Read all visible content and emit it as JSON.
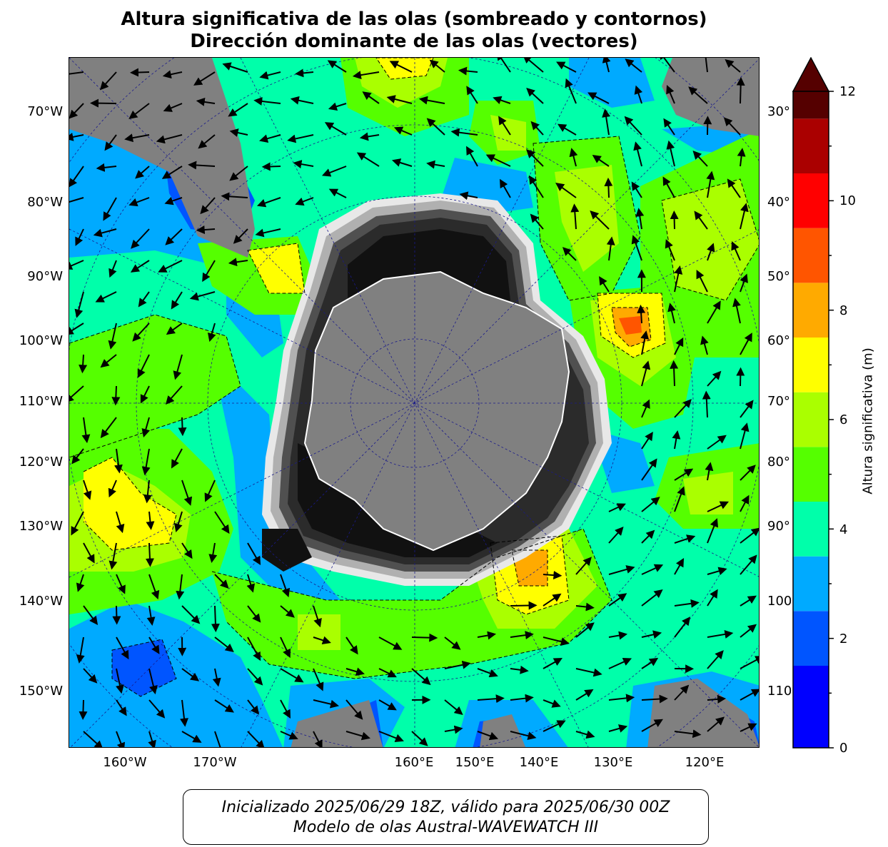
{
  "title": {
    "line1": "Altura significativa de las olas (sombreado y contornos)",
    "line2": "Dirección dominante de las olas (vectores)"
  },
  "map": {
    "projection": "south-polar-stereographic",
    "left_labels": [
      "70°W",
      "80°W",
      "90°W",
      "100°W",
      "110°W",
      "120°W",
      "130°W",
      "140°W",
      "150°W"
    ],
    "right_labels": [
      "30°",
      "40°",
      "50°",
      "60°",
      "70°",
      "80°",
      "90°",
      "100",
      "110"
    ],
    "bottom_labels": [
      "160°W",
      "170°W",
      "160°E",
      "150°E",
      "140°E",
      "130°E",
      "120°E"
    ],
    "colors": {
      "land": "#808080",
      "sea_ice": [
        "#111111",
        "#2b2b2b",
        "#505050",
        "#7a7a7a",
        "#b0b0b0",
        "#e8e8e8"
      ],
      "contour_line": "#000000",
      "graticule": "#1a1a8a",
      "vector": "#000000"
    }
  },
  "colorbar": {
    "label": "Altura significativa (m)",
    "ticks": [
      "0",
      "2",
      "4",
      "6",
      "8",
      "10",
      "12"
    ],
    "vmin": 0,
    "vmax": 12,
    "extend": "max",
    "levels": [
      {
        "from": 0,
        "to": 1.5,
        "color": "#0000ff"
      },
      {
        "from": 1.5,
        "to": 2.5,
        "color": "#0055ff"
      },
      {
        "from": 2.5,
        "to": 3.5,
        "color": "#00aaff"
      },
      {
        "from": 3.5,
        "to": 4.5,
        "color": "#00ffaa"
      },
      {
        "from": 4.5,
        "to": 5.5,
        "color": "#55ff00"
      },
      {
        "from": 5.5,
        "to": 6.5,
        "color": "#aaff00"
      },
      {
        "from": 6.5,
        "to": 7.5,
        "color": "#ffff00"
      },
      {
        "from": 7.5,
        "to": 8.5,
        "color": "#ffaa00"
      },
      {
        "from": 8.5,
        "to": 9.5,
        "color": "#ff5500"
      },
      {
        "from": 9.5,
        "to": 10.5,
        "color": "#ff0000"
      },
      {
        "from": 10.5,
        "to": 11.5,
        "color": "#aa0000"
      },
      {
        "from": 11.5,
        "to": 12,
        "color": "#550000"
      }
    ],
    "extend_color": "#550000"
  },
  "footer": {
    "line1": "Inicializado 2025/06/29 18Z, válido para 2025/06/30 00Z",
    "line2": "Modelo de olas Austral-WAVEWATCH III"
  }
}
